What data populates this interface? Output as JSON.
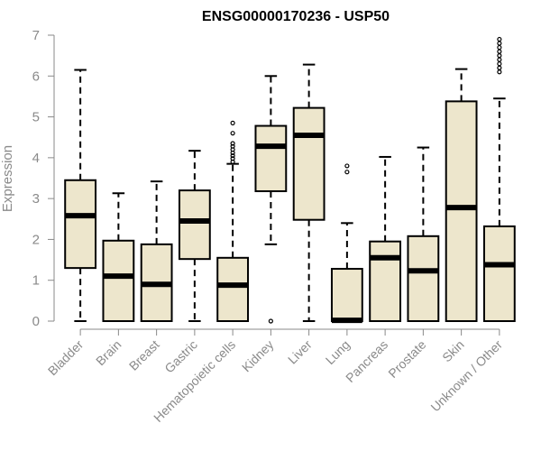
{
  "chart_data": {
    "type": "boxplot",
    "title": "ENSG00000170236 - USP50",
    "ylabel": "Expression",
    "xlabel": "",
    "ylim": [
      0,
      7
    ],
    "yticks": [
      "0",
      "1",
      "2",
      "3",
      "4",
      "5",
      "6",
      "7"
    ],
    "box_fill": "#ede6cc",
    "box_stroke": "#000000",
    "axis_color": "#8a8a8a",
    "grid": false,
    "categories": [
      "Bladder",
      "Brain",
      "Breast",
      "Gastric",
      "Hematopoietic cells",
      "Kidney",
      "Liver",
      "Lung",
      "Pancreas",
      "Prostate",
      "Skin",
      "Unknown / Other"
    ],
    "boxes": [
      {
        "min": 0,
        "q1": 1.3,
        "median": 2.58,
        "q3": 3.45,
        "max": 6.15,
        "outliers": []
      },
      {
        "min": 0,
        "q1": 0,
        "median": 1.1,
        "q3": 1.97,
        "max": 3.13,
        "outliers": []
      },
      {
        "min": 0,
        "q1": 0,
        "median": 0.9,
        "q3": 1.88,
        "max": 3.42,
        "outliers": []
      },
      {
        "min": 0,
        "q1": 1.52,
        "median": 2.45,
        "q3": 3.2,
        "max": 4.17,
        "outliers": []
      },
      {
        "min": 0,
        "q1": 0,
        "median": 0.88,
        "q3": 1.55,
        "max": 3.85,
        "outliers": [
          3.9,
          3.98,
          4.05,
          4.12,
          4.2,
          4.28,
          4.35,
          4.6,
          4.85
        ]
      },
      {
        "min": 1.88,
        "q1": 3.18,
        "median": 4.28,
        "q3": 4.78,
        "max": 6.0,
        "outliers": [
          0
        ]
      },
      {
        "min": 0,
        "q1": 2.48,
        "median": 4.55,
        "q3": 5.22,
        "max": 6.28,
        "outliers": []
      },
      {
        "min": 0,
        "q1": 0,
        "median": 0.02,
        "q3": 1.28,
        "max": 2.4,
        "outliers": [
          3.65,
          3.8
        ]
      },
      {
        "min": 0,
        "q1": 0,
        "median": 1.55,
        "q3": 1.95,
        "max": 4.02,
        "outliers": []
      },
      {
        "min": 0,
        "q1": 0,
        "median": 1.23,
        "q3": 2.08,
        "max": 4.25,
        "outliers": []
      },
      {
        "min": 0,
        "q1": 0,
        "median": 2.78,
        "q3": 5.38,
        "max": 6.17,
        "outliers": []
      },
      {
        "min": 0,
        "q1": 0,
        "median": 1.38,
        "q3": 2.32,
        "max": 5.45,
        "outliers": [
          6.1,
          6.2,
          6.3,
          6.4,
          6.5,
          6.6,
          6.7,
          6.8,
          6.9
        ]
      }
    ]
  }
}
